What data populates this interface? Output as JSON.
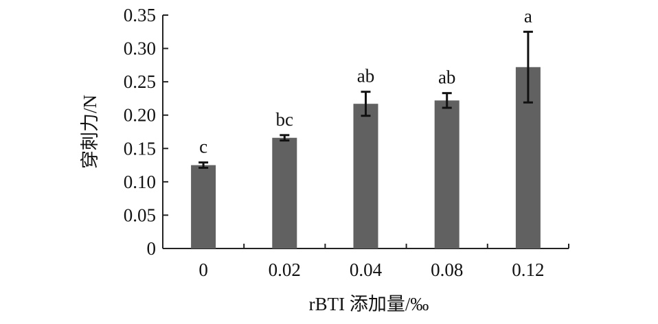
{
  "chart_data": {
    "type": "bar",
    "categories": [
      "0",
      "0.02",
      "0.04",
      "0.08",
      "0.12"
    ],
    "values": [
      0.125,
      0.166,
      0.217,
      0.222,
      0.272
    ],
    "errors": [
      0.004,
      0.004,
      0.018,
      0.011,
      0.053
    ],
    "significance": [
      "c",
      "bc",
      "ab",
      "ab",
      "a"
    ],
    "xlabel": "rBTI 添加量/‰",
    "ylabel": "穿刺力/N",
    "ylim": [
      0,
      0.35
    ],
    "yticks": [
      "0",
      "0.05",
      "0.10",
      "0.15",
      "0.20",
      "0.25",
      "0.30",
      "0.35"
    ],
    "bar_color": "#616161",
    "error_bar_color": "#111111",
    "grid": false,
    "legend": "none"
  }
}
